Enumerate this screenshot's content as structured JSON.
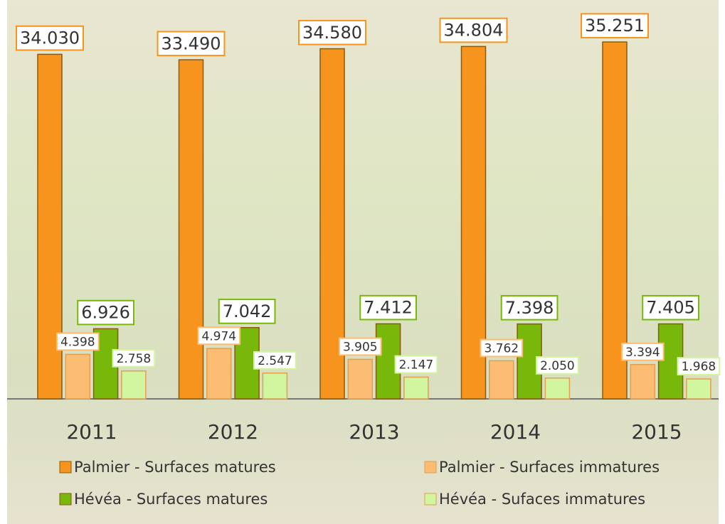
{
  "chart_data": {
    "type": "bar",
    "categories": [
      "2011",
      "2012",
      "2013",
      "2014",
      "2015"
    ],
    "series": [
      {
        "name": "Palmier - Surfaces matures",
        "color": "#f7941d",
        "values": [
          34030,
          33490,
          34580,
          34804,
          35251
        ],
        "value_labels": [
          "34.030",
          "33.490",
          "34.580",
          "34.804",
          "35.251"
        ]
      },
      {
        "name": "Palmier - Surfaces immatures",
        "color": "#fbbd74",
        "values": [
          4398,
          4974,
          3905,
          3762,
          3394
        ],
        "value_labels": [
          "4.398",
          "4.974",
          "3.905",
          "3.762",
          "3.394"
        ]
      },
      {
        "name": "Hévéa - Surfaces matures",
        "color": "#78b80a",
        "values": [
          6926,
          7042,
          7412,
          7398,
          7405
        ],
        "value_labels": [
          "6.926",
          "7.042",
          "7.412",
          "7.398",
          "7.405"
        ]
      },
      {
        "name": "Hévéa - Sufaces immatures",
        "color": "#d2f5a0",
        "values": [
          2758,
          2547,
          2147,
          2050,
          1968
        ],
        "value_labels": [
          "2.758",
          "2.547",
          "2.147",
          "2.050",
          "1.968"
        ]
      }
    ]
  }
}
